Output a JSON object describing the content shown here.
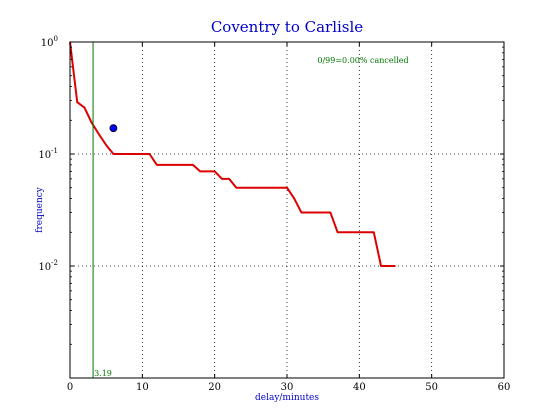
{
  "chart_data": {
    "type": "line",
    "title": "Coventry to Carlisle",
    "xlabel": "delay/minutes",
    "ylabel": "frequency",
    "xlim": [
      0,
      60
    ],
    "ylim": [
      0.001,
      1
    ],
    "y_scale": "log",
    "grid": true,
    "x_ticks": [
      "0",
      "10",
      "20",
      "30",
      "40",
      "50",
      "60"
    ],
    "y_ticks": [
      {
        "base": "10",
        "exp": "0",
        "value": 1
      },
      {
        "base": "10",
        "exp": "-1",
        "value": 0.1
      },
      {
        "base": "10",
        "exp": "-2",
        "value": 0.01
      }
    ],
    "series": [
      {
        "color": "#dd0000",
        "x": [
          0,
          1,
          2,
          3,
          4,
          5,
          6,
          7,
          8,
          9,
          10,
          11,
          12,
          13,
          14,
          15,
          16,
          17,
          18,
          19,
          20,
          21,
          22,
          23,
          24,
          25,
          26,
          27,
          28,
          29,
          30,
          31,
          32,
          33,
          34,
          35,
          36,
          37,
          38,
          39,
          40,
          41,
          42,
          43,
          44,
          45
        ],
        "y": [
          1.0,
          0.29,
          0.26,
          0.19,
          0.15,
          0.12,
          0.1,
          0.1,
          0.1,
          0.1,
          0.1,
          0.1,
          0.08,
          0.08,
          0.08,
          0.08,
          0.08,
          0.08,
          0.07,
          0.07,
          0.07,
          0.06,
          0.06,
          0.05,
          0.05,
          0.05,
          0.05,
          0.05,
          0.05,
          0.05,
          0.05,
          0.04,
          0.03,
          0.03,
          0.03,
          0.03,
          0.03,
          0.02,
          0.02,
          0.02,
          0.02,
          0.02,
          0.02,
          0.01,
          0.01,
          0.01
        ]
      }
    ],
    "mean_marker": {
      "x": 6,
      "y": 0.17,
      "color": "#0000ff"
    },
    "vline": {
      "x": 3.19,
      "label": "3.19",
      "color": "#007700"
    },
    "annotation": "0/99=0.00% cancelled"
  }
}
